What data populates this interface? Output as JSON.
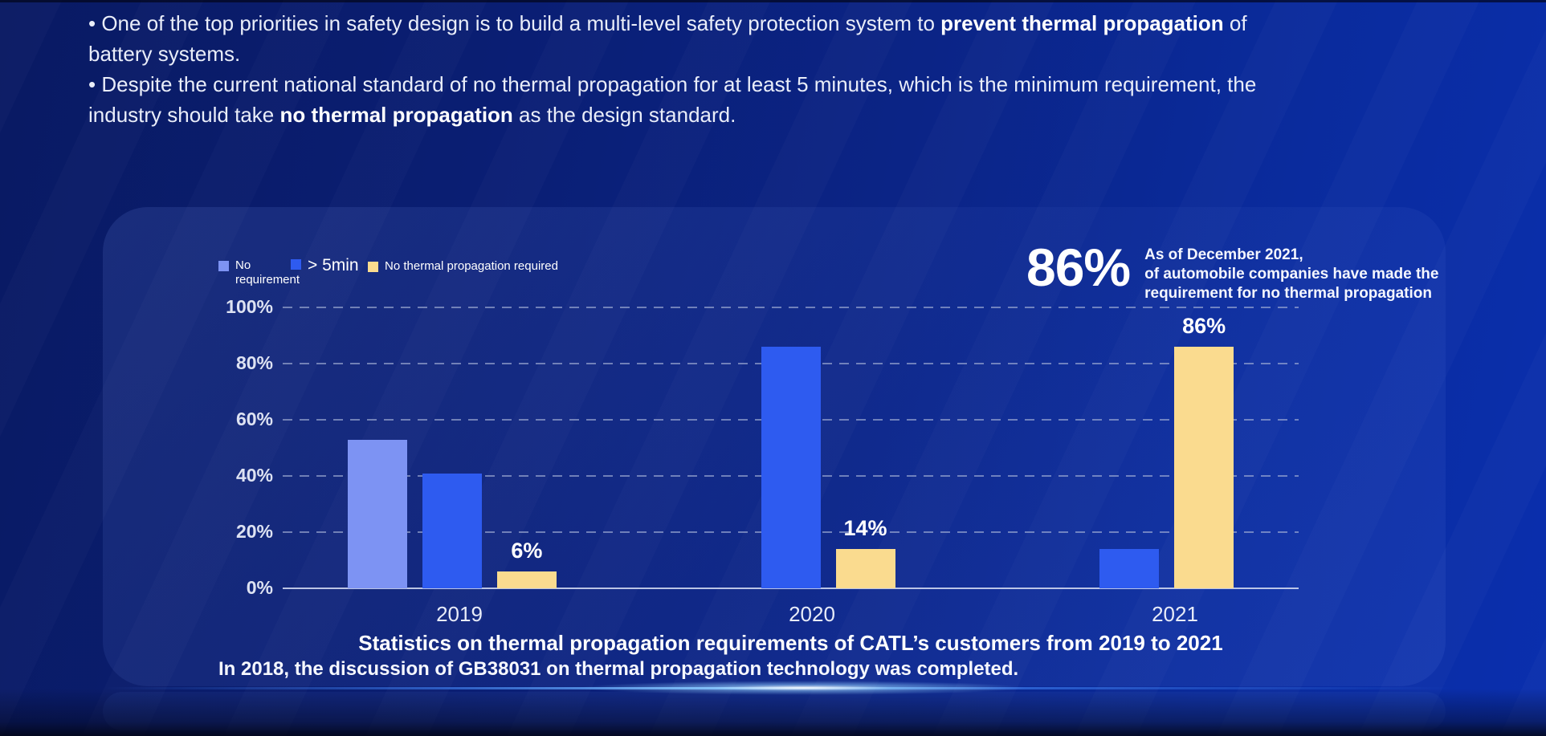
{
  "slide": {
    "bullets": [
      {
        "pre": "• One of the top priorities in safety design is to build a multi-level safety protection system to ",
        "bold": "prevent thermal propagation",
        "post": " of battery systems."
      },
      {
        "pre": "• Despite the current national standard of no thermal propagation for at least 5 minutes, which is the minimum requirement, the industry should take ",
        "bold": "no thermal propagation",
        "post": " as the design standard."
      }
    ],
    "highlight_stat": {
      "value": "86%",
      "line1": "As of December 2021,",
      "line2": "of automobile companies have made the",
      "line3": "requirement for no thermal propagation"
    },
    "caption": "Statistics on thermal propagation requirements of CATL’s customers from 2019 to 2021",
    "footnote": "In 2018, the discussion of GB38031 on thermal propagation technology was completed."
  },
  "chart_data": {
    "type": "bar",
    "title": "Statistics on thermal propagation requirements of CATL’s customers from 2019 to 2021",
    "categories": [
      "2019",
      "2020",
      "2021"
    ],
    "series": [
      {
        "name": "No requirement",
        "color": "#7d93f3",
        "values": [
          53,
          null,
          null
        ],
        "labels": [
          null,
          null,
          null
        ]
      },
      {
        "name": "> 5min",
        "color": "#2e5bf0",
        "values": [
          41,
          86,
          14
        ],
        "labels": [
          null,
          null,
          null
        ]
      },
      {
        "name": "No thermal propagation required",
        "color": "#fadb8f",
        "values": [
          6,
          14,
          86
        ],
        "labels": [
          "6%",
          "14%",
          "86%"
        ]
      }
    ],
    "yticks": [
      "0%",
      "20%",
      "40%",
      "60%",
      "80%",
      "100%"
    ],
    "ylim": [
      0,
      100
    ],
    "grid": "horizontal-dashed",
    "legend_position": "top-left",
    "xlabel": "",
    "ylabel": ""
  }
}
